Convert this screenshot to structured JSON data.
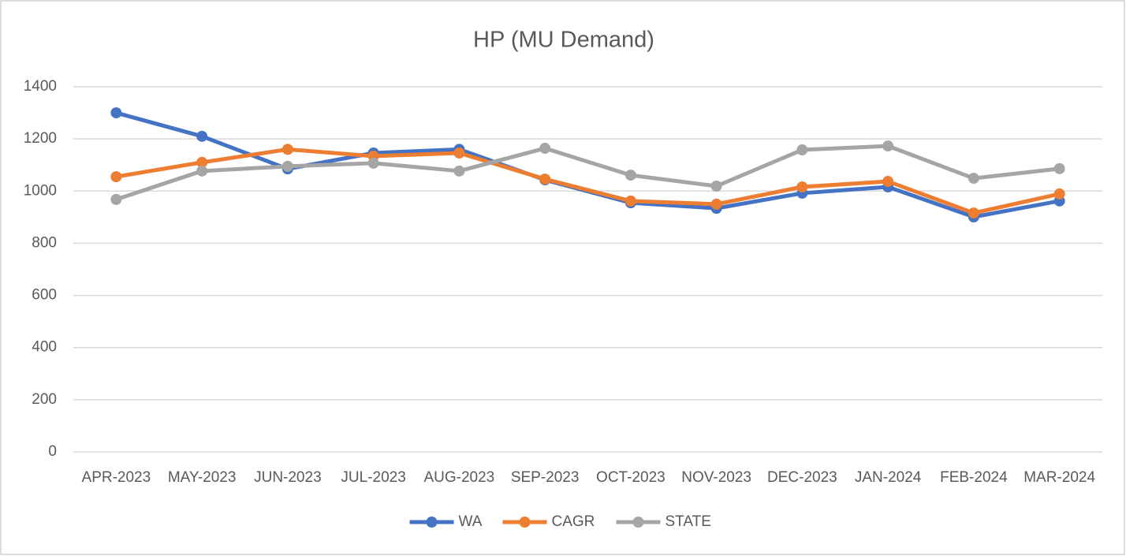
{
  "chart_data": {
    "type": "line",
    "title": "HP (MU Demand)",
    "categories": [
      "APR-2023",
      "MAY-2023",
      "JUN-2023",
      "JUL-2023",
      "AUG-2023",
      "SEP-2023",
      "OCT-2023",
      "NOV-2023",
      "DEC-2023",
      "JAN-2024",
      "FEB-2024",
      "MAR-2024"
    ],
    "series": [
      {
        "name": "WA",
        "color": "#4472c4",
        "values": [
          1300,
          1210,
          1085,
          1146,
          1160,
          1043,
          955,
          934,
          992,
          1016,
          901,
          962
        ]
      },
      {
        "name": "CAGR",
        "color": "#ed7d31",
        "values": [
          1055,
          1110,
          1160,
          1134,
          1146,
          1046,
          962,
          950,
          1016,
          1037,
          916,
          989
        ]
      },
      {
        "name": "STATE",
        "color": "#a5a5a5",
        "values": [
          968,
          1077,
          1095,
          1107,
          1077,
          1164,
          1061,
          1019,
          1158,
          1173,
          1049,
          1086
        ]
      }
    ],
    "ylim": [
      0,
      1400
    ],
    "yticks": [
      0,
      200,
      400,
      600,
      800,
      1000,
      1200,
      1400
    ],
    "grid": true,
    "legend": "bottom"
  }
}
